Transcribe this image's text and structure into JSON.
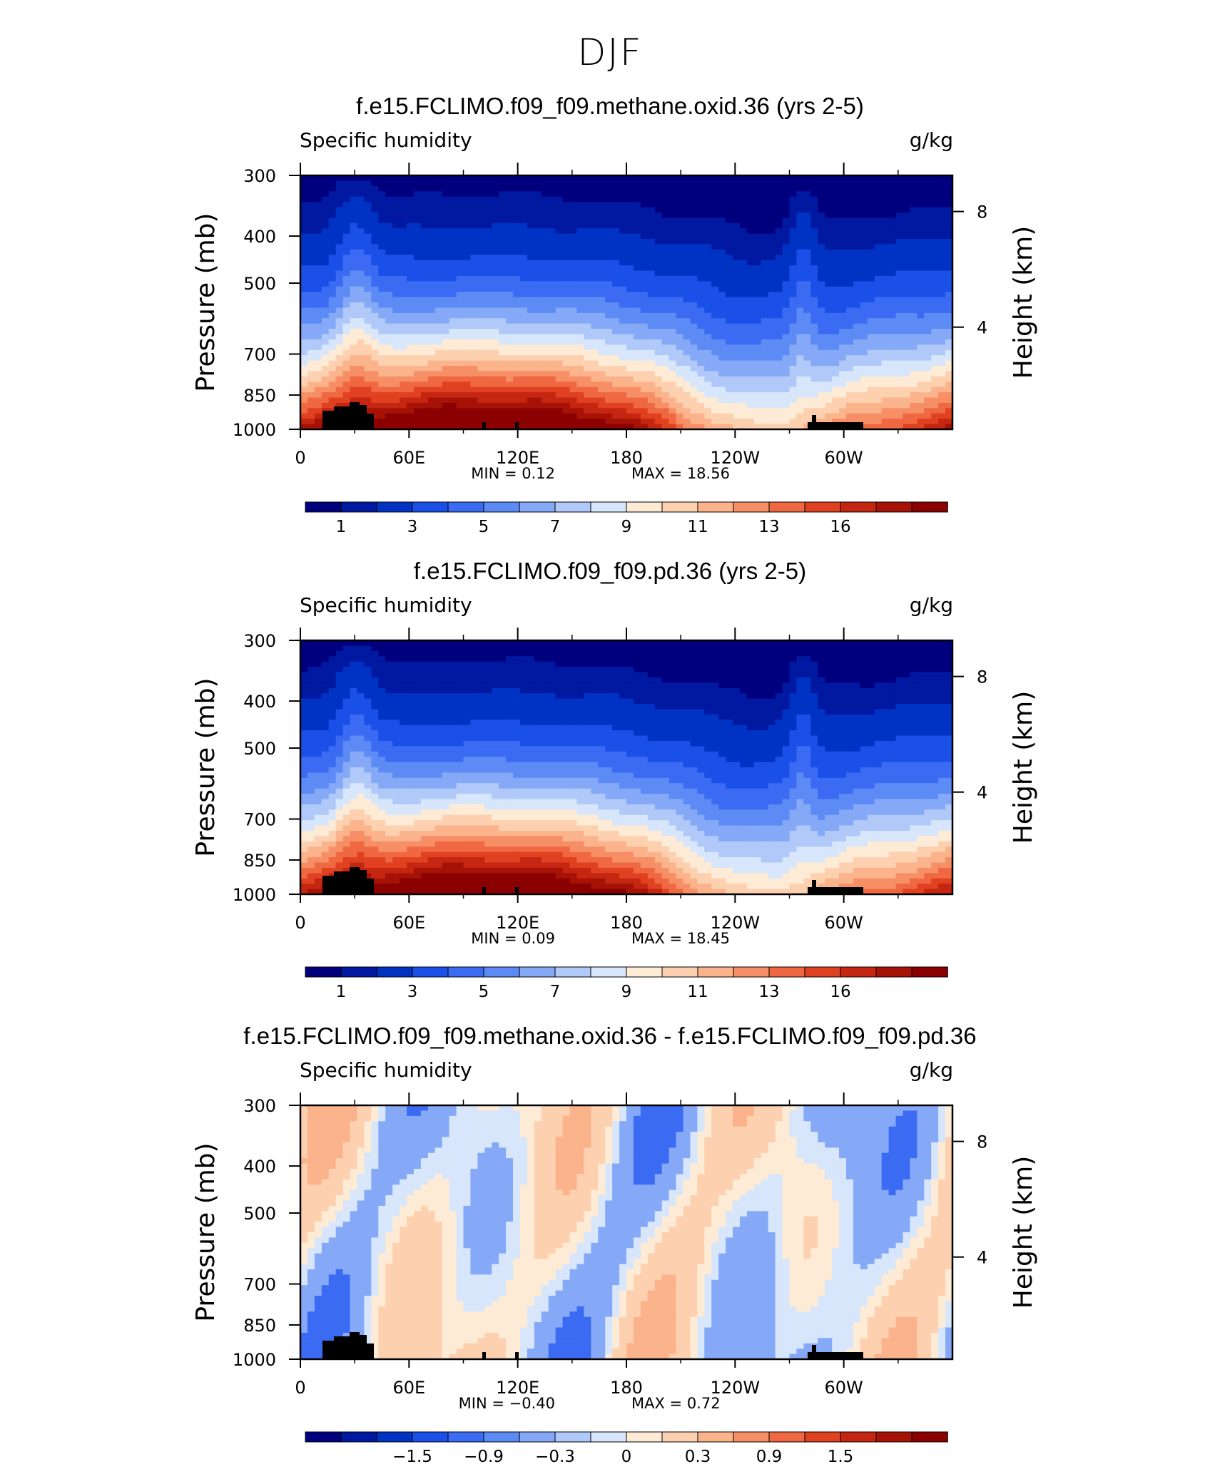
{
  "figure_title": "DJF",
  "chart_data": [
    {
      "type": "heatmap",
      "title": "f.e15.FCLIMO.f09_f09.methane.oxid.36 (yrs 2-5)",
      "subtitle_left": "Specific humidity",
      "subtitle_right": "g/kg",
      "xlabel": "",
      "ylabel": "Pressure (mb)",
      "ylabel_right": "Height (km)",
      "x_ticks": [
        "0",
        "60E",
        "120E",
        "180",
        "120W",
        "60W"
      ],
      "y_ticks": [
        "300",
        "400",
        "500",
        "700",
        "850",
        "1000"
      ],
      "y_right_ticks": [
        "8",
        "4"
      ],
      "min_text": "MIN =    0.12",
      "max_text": "MAX =    18.56",
      "colorbar_labels": [
        "1",
        "3",
        "5",
        "7",
        "9",
        "11",
        "13",
        "16"
      ],
      "min": 0.12,
      "max": 18.56
    },
    {
      "type": "heatmap",
      "title": "f.e15.FCLIMO.f09_f09.pd.36 (yrs 2-5)",
      "subtitle_left": "Specific humidity",
      "subtitle_right": "g/kg",
      "xlabel": "",
      "ylabel": "Pressure (mb)",
      "ylabel_right": "Height (km)",
      "x_ticks": [
        "0",
        "60E",
        "120E",
        "180",
        "120W",
        "60W"
      ],
      "y_ticks": [
        "300",
        "400",
        "500",
        "700",
        "850",
        "1000"
      ],
      "y_right_ticks": [
        "8",
        "4"
      ],
      "min_text": "MIN =    0.09",
      "max_text": "MAX =    18.45",
      "colorbar_labels": [
        "1",
        "3",
        "5",
        "7",
        "9",
        "11",
        "13",
        "16"
      ],
      "min": 0.09,
      "max": 18.45
    },
    {
      "type": "heatmap",
      "title": "f.e15.FCLIMO.f09_f09.methane.oxid.36 - f.e15.FCLIMO.f09_f09.pd.36",
      "subtitle_left": "Specific humidity",
      "subtitle_right": "g/kg",
      "xlabel": "",
      "ylabel": "Pressure (mb)",
      "ylabel_right": "Height (km)",
      "x_ticks": [
        "0",
        "60E",
        "120E",
        "180",
        "120W",
        "60W"
      ],
      "y_ticks": [
        "300",
        "400",
        "500",
        "700",
        "850",
        "1000"
      ],
      "y_right_ticks": [
        "8",
        "4"
      ],
      "min_text": "MIN =   −0.40",
      "max_text": "MAX =    0.72",
      "colorbar_labels": [
        "−1.5",
        "−0.9",
        "−0.3",
        "0",
        "0.3",
        "0.9",
        "1.5"
      ],
      "min": -0.4,
      "max": 0.72
    }
  ],
  "colors": {
    "cmap_abs": [
      "#00007f",
      "#0019a0",
      "#0033c4",
      "#1a4fe8",
      "#3a6bf2",
      "#5c8bf5",
      "#85a9f7",
      "#b0c9f9",
      "#d8e6fb",
      "#fdebd6",
      "#fdd0b0",
      "#fbb38c",
      "#f78f66",
      "#f06842",
      "#e04121",
      "#c52611",
      "#a71207",
      "#8b0000"
    ],
    "cmap_diff": [
      "#00007f",
      "#0019a0",
      "#0033c4",
      "#1a4fe8",
      "#3a6bf2",
      "#5c8bf5",
      "#85a9f7",
      "#b0c9f9",
      "#d8e6fb",
      "#fdebd6",
      "#fdd0b0",
      "#fbb38c",
      "#f78f66",
      "#f06842",
      "#e04121",
      "#c52611",
      "#a71207",
      "#8b0000"
    ],
    "terrain": "#000000"
  }
}
